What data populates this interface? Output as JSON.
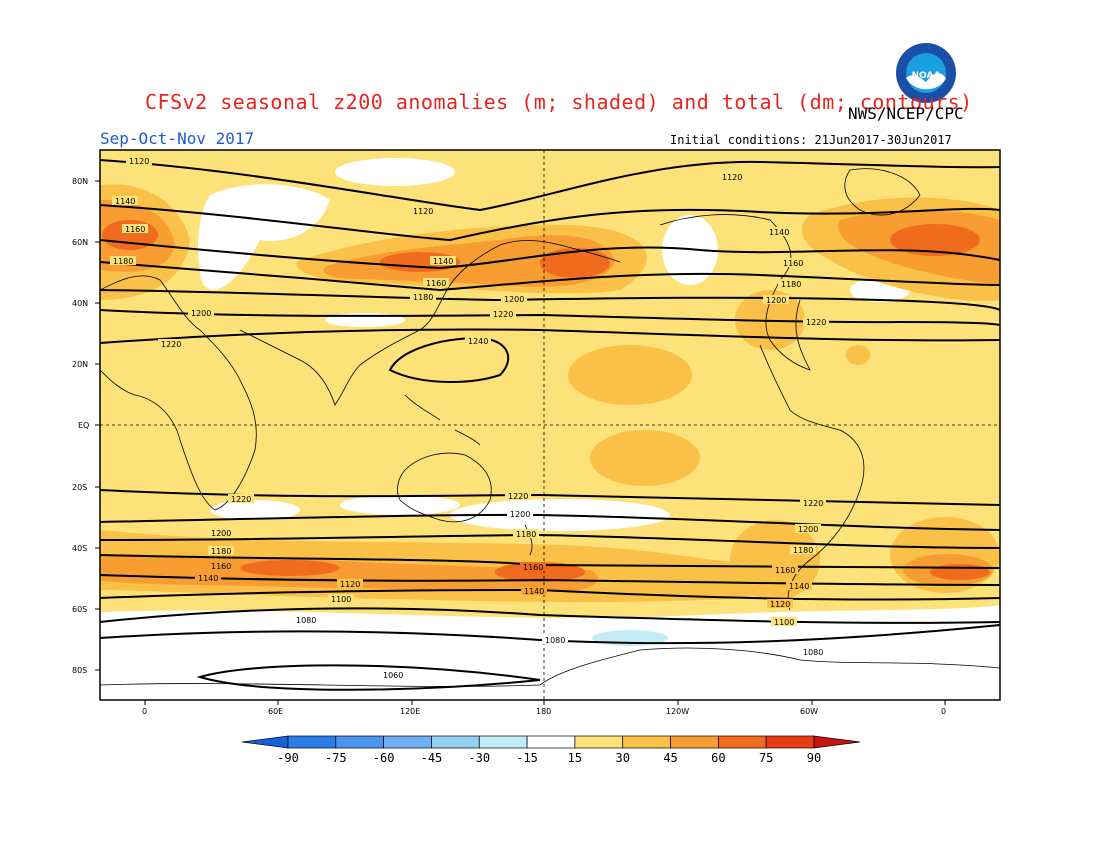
{
  "title": "CFSv2 seasonal z200 anomalies (m; shaded) and total (dm; contours)",
  "agency": "NWS/NCEP/CPC",
  "season": "Sep-Oct-Nov 2017",
  "initial_conditions": "Initial conditions: 21Jun2017-30Jun2017",
  "logo": {
    "text": "NOAA",
    "colors": {
      "outer": "#1a4fa8",
      "inner": "#1aa0e0",
      "bird": "#ffffff"
    }
  },
  "map": {
    "lat_labels": [
      "80N",
      "60N",
      "40N",
      "20N",
      "EQ",
      "20S",
      "40S",
      "60S",
      "80S"
    ],
    "lon_labels": [
      "0",
      "60E",
      "120E",
      "180",
      "120W",
      "60W",
      "0"
    ]
  },
  "contour_labels": [
    "1120",
    "1140",
    "1160",
    "1180",
    "1200",
    "1220",
    "1240",
    "1100",
    "1080",
    "1060"
  ],
  "colorbar": {
    "levels": [
      "-90",
      "-75",
      "-60",
      "-45",
      "-30",
      "-15",
      "15",
      "30",
      "45",
      "60",
      "75",
      "90"
    ],
    "colors": [
      "#1560d8",
      "#2a7de8",
      "#4a94ee",
      "#6fb0f2",
      "#96d0f4",
      "#c2ecf6",
      "#ffffff",
      "#fde27a",
      "#fbc048",
      "#f89d32",
      "#f06b1e",
      "#e83c14",
      "#c8140c"
    ]
  }
}
